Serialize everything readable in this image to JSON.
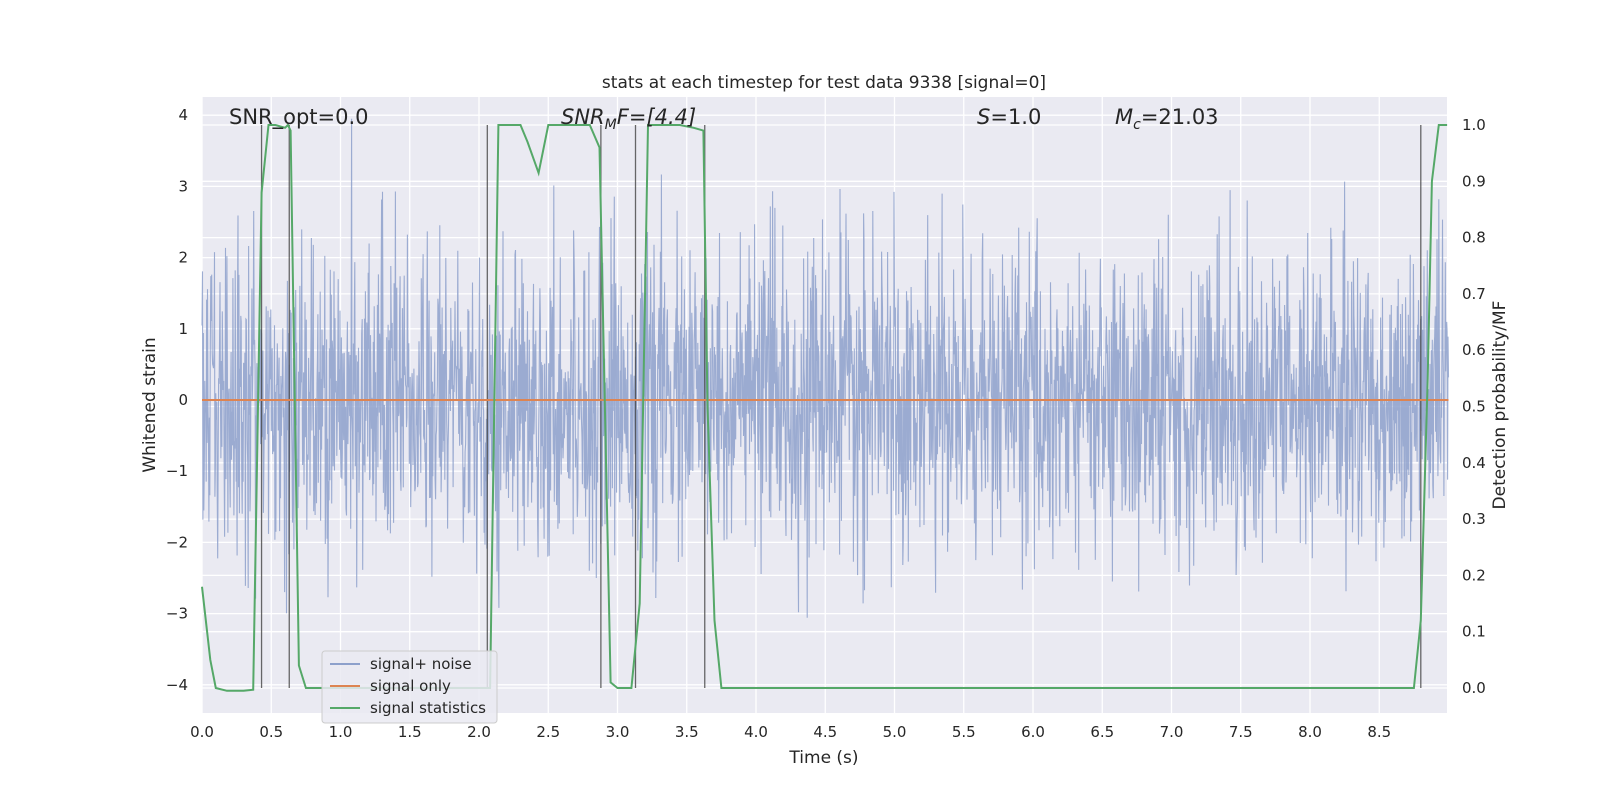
{
  "chart_data": {
    "type": "line",
    "title": "stats at each timestep for test data 9338 [signal=0]",
    "xlabel": "Time (s)",
    "ylabel": "Whitened strain",
    "ylabel_right": "Detection probability/MF",
    "xlim": [
      0.0,
      9.0
    ],
    "ylim": [
      -4.4,
      4.25
    ],
    "ylim_right": [
      -0.05,
      1.04
    ],
    "x_ticks": [
      "0.0",
      "0.5",
      "1.0",
      "1.5",
      "2.0",
      "2.5",
      "3.0",
      "3.5",
      "4.0",
      "4.5",
      "5.0",
      "5.5",
      "6.0",
      "6.5",
      "7.0",
      "7.5",
      "8.0",
      "8.5"
    ],
    "y_ticks": [
      "−4",
      "−3",
      "−2",
      "−1",
      "0",
      "1",
      "2",
      "3",
      "4"
    ],
    "y_right_ticks": [
      "0.0",
      "0.1",
      "0.2",
      "0.3",
      "0.4",
      "0.5",
      "0.6",
      "0.7",
      "0.8",
      "0.9",
      "1.0"
    ],
    "grid": true,
    "legend": {
      "placement": "lower-left",
      "entries": [
        {
          "label": "signal+ noise",
          "color": "#8da0cb"
        },
        {
          "label": "signal only",
          "color": "#dd8452"
        },
        {
          "label": "signal statistics",
          "color": "#55a868"
        }
      ]
    },
    "annotations": {
      "snr_opt": "SNR_opt=0.0",
      "snr_mf_main": "SNR",
      "snr_mf_sub": "M",
      "snr_mf_rest": "F=[4.4]",
      "s_main": "S",
      "s_rest": "=1.0",
      "mc_main": "M",
      "mc_sub": "c",
      "mc_rest": "=21.03"
    },
    "series": [
      {
        "name": "signal+ noise",
        "color": "#8da0cb",
        "style": "dense noise trace",
        "sample_rate_hz": 300,
        "envelope_typical": [
          -2.3,
          2.3
        ],
        "extremes": [
          -4.0,
          3.95
        ]
      },
      {
        "name": "signal only",
        "color": "#dd8452",
        "values_const": 0.0
      },
      {
        "name": "signal statistics",
        "color": "#55a868",
        "axis": "right",
        "x": [
          0.0,
          0.06,
          0.1,
          0.18,
          0.25,
          0.3,
          0.37,
          0.43,
          0.48,
          0.53,
          0.6,
          0.62,
          0.64,
          0.7,
          0.75,
          0.8,
          1.0,
          1.5,
          2.0,
          2.06,
          2.08,
          2.14,
          2.2,
          2.3,
          2.35,
          2.43,
          2.5,
          2.7,
          2.8,
          2.87,
          2.95,
          3.0,
          3.05,
          3.1,
          3.16,
          3.22,
          3.3,
          3.45,
          3.55,
          3.62,
          3.65,
          3.7,
          3.75,
          4.0,
          5.0,
          6.0,
          7.0,
          8.0,
          8.5,
          8.75,
          8.8,
          8.85,
          8.88,
          8.93,
          8.99
        ],
        "y": [
          0.18,
          0.05,
          0.0,
          -0.005,
          -0.005,
          -0.005,
          -0.003,
          0.88,
          1.0,
          1.0,
          0.995,
          1.0,
          0.99,
          0.04,
          0.0,
          0.0,
          0.0,
          0.0,
          0.0,
          0.0,
          0.0,
          1.0,
          1.0,
          1.0,
          0.97,
          0.915,
          1.0,
          1.0,
          1.0,
          0.96,
          0.01,
          0.0,
          0.0,
          0.0,
          0.15,
          1.0,
          1.0,
          1.0,
          0.995,
          0.99,
          0.5,
          0.12,
          0.0,
          0.0,
          0.0,
          0.0,
          0.0,
          0.0,
          0.0,
          0.0,
          0.12,
          0.55,
          0.9,
          1.0,
          1.0
        ]
      }
    ],
    "vertical_markers_s": [
      0.43,
      0.63,
      2.06,
      2.88,
      3.13,
      3.63,
      8.8
    ]
  }
}
